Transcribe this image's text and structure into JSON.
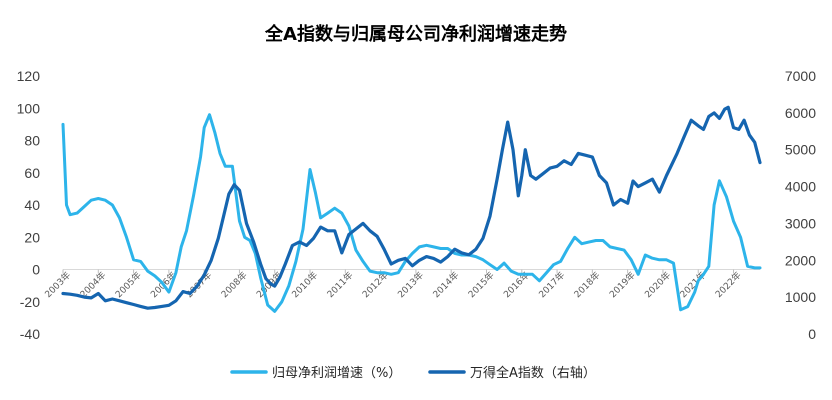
{
  "chart_data": {
    "type": "line",
    "title": "全A指数与归属母公司净利润增速走势",
    "x_tick_labels": [
      "2003年",
      "2004年",
      "2005年",
      "2006年",
      "2007年",
      "2008年",
      "2009年",
      "2010年",
      "2011年",
      "2012年",
      "2013年",
      "2014年",
      "2015年",
      "2016年",
      "2017年",
      "2018年",
      "2019年",
      "2020年",
      "2021年",
      "2022年"
    ],
    "xlim": [
      2003.0,
      2022.75
    ],
    "left_axis": {
      "ylim": [
        -40,
        120
      ],
      "ticks": [
        -40,
        -20,
        0,
        20,
        40,
        60,
        80,
        100,
        120
      ]
    },
    "right_axis": {
      "ylim": [
        0,
        7000
      ],
      "ticks": [
        0,
        1000,
        2000,
        3000,
        4000,
        5000,
        6000,
        7000
      ]
    },
    "grid": false,
    "legend_position": "bottom",
    "series": [
      {
        "name": "归母净利润增速（%）",
        "axis": "left",
        "color": "#2db4ea",
        "x": [
          2003.0,
          2003.1,
          2003.2,
          2003.4,
          2003.6,
          2003.8,
          2004.0,
          2004.2,
          2004.4,
          2004.6,
          2004.8,
          2005.0,
          2005.2,
          2005.4,
          2005.6,
          2005.8,
          2006.0,
          2006.2,
          2006.35,
          2006.5,
          2006.7,
          2006.9,
          2007.0,
          2007.15,
          2007.3,
          2007.45,
          2007.6,
          2007.8,
          2008.0,
          2008.15,
          2008.3,
          2008.45,
          2008.6,
          2008.8,
          2009.0,
          2009.2,
          2009.4,
          2009.6,
          2009.8,
          2010.0,
          2010.15,
          2010.3,
          2010.5,
          2010.7,
          2010.9,
          2011.1,
          2011.3,
          2011.5,
          2011.7,
          2011.9,
          2012.1,
          2012.3,
          2012.5,
          2012.7,
          2012.9,
          2013.1,
          2013.3,
          2013.5,
          2013.7,
          2013.9,
          2014.1,
          2014.3,
          2014.5,
          2014.7,
          2014.9,
          2015.1,
          2015.3,
          2015.5,
          2015.7,
          2015.9,
          2016.1,
          2016.3,
          2016.5,
          2016.7,
          2016.9,
          2017.1,
          2017.3,
          2017.5,
          2017.7,
          2017.9,
          2018.1,
          2018.3,
          2018.5,
          2018.7,
          2018.9,
          2019.1,
          2019.3,
          2019.5,
          2019.7,
          2019.9,
          2020.1,
          2020.3,
          2020.5,
          2020.7,
          2020.9,
          2021.0,
          2021.15,
          2021.3,
          2021.45,
          2021.6,
          2021.8,
          2022.0,
          2022.2,
          2022.4,
          2022.6,
          2022.75
        ],
        "y": [
          90,
          40,
          34,
          35,
          39,
          43,
          44,
          43,
          40,
          32,
          20,
          6,
          5,
          -1,
          -4,
          -8,
          -14,
          -2,
          14,
          24,
          46,
          70,
          88,
          96,
          85,
          72,
          64,
          64,
          30,
          20,
          18,
          10,
          -5,
          -22,
          -26,
          -20,
          -10,
          5,
          25,
          62,
          48,
          32,
          35,
          38,
          35,
          27,
          12,
          5,
          -1,
          -2,
          -2,
          -3,
          -2,
          5,
          10,
          14,
          15,
          14,
          13,
          13,
          10,
          9,
          9,
          8,
          6,
          3,
          0,
          4,
          -1,
          -3,
          -3,
          -3,
          -7,
          -2,
          3,
          5,
          13,
          20,
          16,
          17,
          18,
          18,
          14,
          13,
          12,
          6,
          -3,
          9,
          7,
          6,
          6,
          4,
          -25,
          -23,
          -14,
          -7,
          -3,
          2,
          40,
          55,
          45,
          30,
          20,
          2,
          1,
          1
        ]
      },
      {
        "name": "万得全A指数（右轴）",
        "axis": "right",
        "color": "#1565b0",
        "x": [
          2003.0,
          2003.2,
          2003.4,
          2003.6,
          2003.8,
          2004.0,
          2004.2,
          2004.4,
          2004.6,
          2004.8,
          2005.0,
          2005.2,
          2005.4,
          2005.6,
          2005.8,
          2006.0,
          2006.2,
          2006.4,
          2006.6,
          2006.8,
          2007.0,
          2007.2,
          2007.4,
          2007.55,
          2007.7,
          2007.85,
          2008.0,
          2008.2,
          2008.4,
          2008.6,
          2008.75,
          2008.9,
          2009.0,
          2009.15,
          2009.3,
          2009.5,
          2009.7,
          2009.9,
          2010.1,
          2010.3,
          2010.5,
          2010.7,
          2010.9,
          2011.1,
          2011.3,
          2011.5,
          2011.7,
          2011.9,
          2012.1,
          2012.3,
          2012.5,
          2012.7,
          2012.9,
          2013.1,
          2013.3,
          2013.5,
          2013.7,
          2013.9,
          2014.1,
          2014.3,
          2014.5,
          2014.7,
          2014.9,
          2015.1,
          2015.3,
          2015.45,
          2015.6,
          2015.75,
          2015.9,
          2016.0,
          2016.1,
          2016.25,
          2016.4,
          2016.6,
          2016.8,
          2017.0,
          2017.2,
          2017.4,
          2017.6,
          2017.8,
          2018.0,
          2018.2,
          2018.4,
          2018.6,
          2018.8,
          2019.0,
          2019.15,
          2019.3,
          2019.5,
          2019.7,
          2019.9,
          2020.1,
          2020.25,
          2020.4,
          2020.6,
          2020.8,
          2021.0,
          2021.15,
          2021.3,
          2021.45,
          2021.6,
          2021.75,
          2021.85,
          2022.0,
          2022.15,
          2022.3,
          2022.45,
          2022.6,
          2022.75
        ],
        "y": [
          1100,
          1080,
          1050,
          1000,
          980,
          1100,
          900,
          950,
          900,
          850,
          800,
          750,
          700,
          720,
          750,
          780,
          900,
          1150,
          1100,
          1300,
          1600,
          2000,
          2600,
          3200,
          3800,
          4050,
          3900,
          3000,
          2500,
          1900,
          1500,
          1350,
          1300,
          1550,
          1900,
          2400,
          2500,
          2400,
          2600,
          2900,
          2800,
          2800,
          2200,
          2700,
          2850,
          3000,
          2800,
          2650,
          2300,
          1900,
          2000,
          2050,
          1850,
          2000,
          2100,
          2050,
          1950,
          2100,
          2300,
          2200,
          2150,
          2300,
          2600,
          3200,
          4200,
          5000,
          5750,
          5000,
          3750,
          4300,
          5000,
          4300,
          4200,
          4350,
          4500,
          4550,
          4700,
          4600,
          4900,
          4850,
          4800,
          4300,
          4100,
          3500,
          3650,
          3550,
          4150,
          4000,
          4100,
          4200,
          3850,
          4300,
          4600,
          4900,
          5350,
          5800,
          5650,
          5550,
          5900,
          6000,
          5850,
          6100,
          6150,
          5600,
          5550,
          5800,
          5400,
          5200,
          4650
        ]
      }
    ],
    "legend": [
      {
        "label": "归母净利润增速（%）",
        "color": "#2db4ea"
      },
      {
        "label": "万得全A指数（右轴）",
        "color": "#1565b0"
      }
    ]
  }
}
